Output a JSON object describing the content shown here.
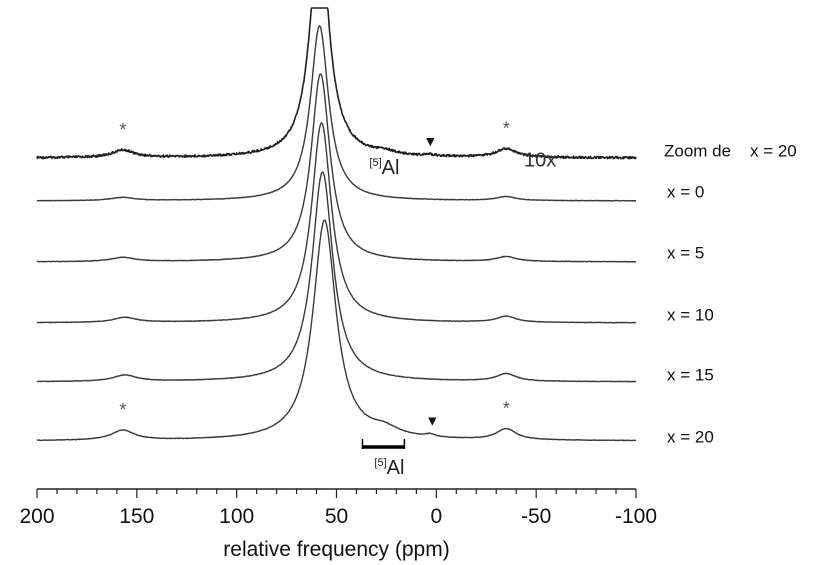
{
  "chart_data": {
    "type": "line",
    "xlabel": "relative frequency (ppm)",
    "xlim": [
      200,
      -100
    ],
    "x_ticks": [
      "200",
      "150",
      "100",
      "50",
      "0",
      "-50",
      "-100"
    ],
    "x_tick_values": [
      200,
      150,
      100,
      50,
      0,
      -50,
      -100
    ],
    "minor_tick_step": 10,
    "grid": false,
    "legend": "none",
    "series": [
      {
        "name": "Zoom de    x = 20",
        "style": "zoom",
        "magnification": "10x",
        "peaks": [
          {
            "center": 157,
            "height": 0.38,
            "width": 6.5
          },
          {
            "center": 58.5,
            "height": 12.0,
            "width": 5.5
          },
          {
            "center": 26,
            "height": 0.17,
            "width": 6
          },
          {
            "center": 3,
            "height": 0.06,
            "width": 3
          },
          {
            "center": -35,
            "height": 0.45,
            "width": 6
          }
        ]
      },
      {
        "name": "x = 0",
        "style": "normal",
        "peaks": [
          {
            "center": 157,
            "height": 0.018,
            "width": 7
          },
          {
            "center": 58.5,
            "height": 1.0,
            "width": 5.5
          },
          {
            "center": -35,
            "height": 0.022,
            "width": 6
          }
        ]
      },
      {
        "name": "x = 5",
        "style": "normal",
        "peaks": [
          {
            "center": 157,
            "height": 0.022,
            "width": 7
          },
          {
            "center": 58,
            "height": 1.0,
            "width": 5.7
          },
          {
            "center": -35,
            "height": 0.026,
            "width": 6
          }
        ]
      },
      {
        "name": "x = 10",
        "style": "normal",
        "peaks": [
          {
            "center": 156,
            "height": 0.025,
            "width": 7
          },
          {
            "center": 57.5,
            "height": 1.0,
            "width": 6
          },
          {
            "center": -35,
            "height": 0.03,
            "width": 6
          }
        ]
      },
      {
        "name": "x = 15",
        "style": "normal",
        "peaks": [
          {
            "center": 156,
            "height": 0.03,
            "width": 7
          },
          {
            "center": 57,
            "height": 1.0,
            "width": 6.3
          },
          {
            "center": -35,
            "height": 0.036,
            "width": 6
          }
        ]
      },
      {
        "name": "x = 20",
        "style": "normal",
        "peaks": [
          {
            "center": 157,
            "height": 0.045,
            "width": 7
          },
          {
            "center": 56,
            "height": 1.0,
            "width": 7
          },
          {
            "center": 26,
            "height": 0.035,
            "width": 9
          },
          {
            "center": 3,
            "height": 0.012,
            "width": 3
          },
          {
            "center": -35,
            "height": 0.05,
            "width": 6
          }
        ]
      }
    ],
    "annotations": [
      {
        "text": "*",
        "x": 157,
        "series": "Zoom de    x = 20",
        "kind": "spinning-sideband"
      },
      {
        "text": "*",
        "x": -35,
        "series": "Zoom de    x = 20",
        "kind": "spinning-sideband"
      },
      {
        "text": "▼",
        "x": 3,
        "series": "Zoom de    x = 20",
        "kind": "marker"
      },
      {
        "text": "[5]Al",
        "x": 26,
        "series": "Zoom de    x = 20",
        "kind": "label"
      },
      {
        "text": "10x",
        "x": -52,
        "series": "Zoom de    x = 20",
        "kind": "label"
      },
      {
        "text": "*",
        "x": 157,
        "series": "x = 20",
        "kind": "spinning-sideband"
      },
      {
        "text": "*",
        "x": -35,
        "series": "x = 20",
        "kind": "spinning-sideband"
      },
      {
        "text": "▼",
        "x": 2,
        "series": "x = 20",
        "kind": "marker"
      },
      {
        "text": "[5]Al",
        "x": 26,
        "x_range": [
          37,
          16
        ],
        "series": "x = 20",
        "kind": "bracket-label"
      }
    ]
  }
}
